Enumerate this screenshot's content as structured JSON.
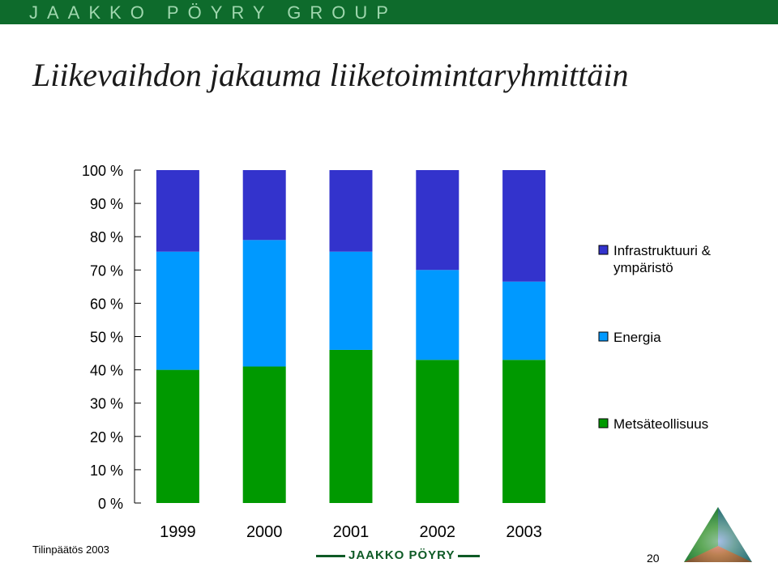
{
  "header": {
    "brand": "JAAKKO PÖYRY GROUP"
  },
  "slide": {
    "title": "Liikevaihdon jakauma liiketoimintaryhmittäin",
    "footer_left": "Tilinpäätös 2003",
    "footer_logo": "JAAKKO PÖYRY",
    "page_number": "20"
  },
  "colors": {
    "header_bg": "#0e6b2c",
    "header_text": "#9fd7ae",
    "infrastruktuuri": "#3333cc",
    "energia": "#0099ff",
    "metsateollisuus": "#009900"
  },
  "chart_data": {
    "type": "bar",
    "stacked": true,
    "percent": true,
    "title": "",
    "xlabel": "",
    "ylabel": "",
    "categories": [
      "1999",
      "2000",
      "2001",
      "2002",
      "2003"
    ],
    "yticks": [
      "0 %",
      "10 %",
      "20 %",
      "30 %",
      "40 %",
      "50 %",
      "60 %",
      "70 %",
      "80 %",
      "90 %",
      "100 %"
    ],
    "ylim": [
      0,
      100
    ],
    "legend_position": "right",
    "series": [
      {
        "name": "Metsäteollisuus",
        "color": "#009900",
        "values": [
          40,
          41,
          46,
          43,
          43
        ]
      },
      {
        "name": "Energia",
        "color": "#0099ff",
        "values": [
          35.5,
          38,
          29.5,
          27,
          23.5
        ]
      },
      {
        "name": "Infrastruktuuri & ympäristö",
        "color": "#3333cc",
        "values": [
          24.5,
          21,
          24.5,
          30,
          33.5
        ]
      }
    ]
  }
}
